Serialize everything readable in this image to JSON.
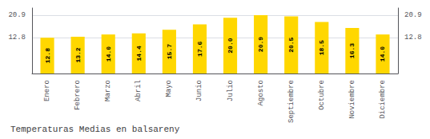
{
  "chart_data": {
    "type": "bar",
    "title": "Temperaturas Medias en balsareny",
    "categories": [
      "Enero",
      "Febrero",
      "Marzo",
      "Abril",
      "Mayo",
      "Junio",
      "Julio",
      "Agosto",
      "Septiembre",
      "Octubre",
      "Noviembre",
      "Diciembre"
    ],
    "values": [
      12.8,
      13.2,
      14.0,
      14.4,
      15.7,
      17.6,
      20.0,
      20.9,
      20.5,
      18.5,
      16.3,
      14.0
    ],
    "value_labels": [
      "12.8",
      "13.2",
      "14.0",
      "14.4",
      "15.7",
      "17.6",
      "20.0",
      "20.9",
      "20.5",
      "18.5",
      "16.3",
      "14.0"
    ],
    "data_labels": true,
    "color": "#FFD700",
    "ylim": [
      0.0,
      23.5
    ],
    "yticks": [
      12.8,
      20.9
    ],
    "y2lim": [
      0.0,
      23.5
    ],
    "y2ticks": [
      12.8,
      20.9
    ],
    "grid": true
  }
}
